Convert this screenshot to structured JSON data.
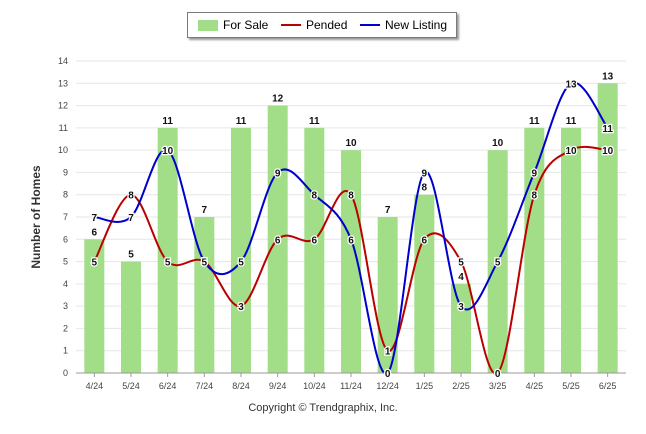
{
  "chart_data": {
    "type": "bar",
    "categories": [
      "4/24",
      "5/24",
      "6/24",
      "7/24",
      "8/24",
      "9/24",
      "10/24",
      "11/24",
      "12/24",
      "1/25",
      "2/25",
      "3/25",
      "4/25",
      "5/25",
      "6/25"
    ],
    "series": [
      {
        "name": "For Sale",
        "type": "bar",
        "color": "#a2dd88",
        "values": [
          6,
          5,
          11,
          7,
          11,
          12,
          11,
          10,
          7,
          8,
          4,
          10,
          11,
          11,
          13
        ]
      },
      {
        "name": "Pended",
        "type": "line",
        "color": "#bb0000",
        "values": [
          5,
          8,
          5,
          5,
          3,
          6,
          6,
          8,
          1,
          6,
          5,
          0,
          8,
          10,
          10
        ]
      },
      {
        "name": "New Listing",
        "type": "line",
        "color": "#0000cc",
        "values": [
          7,
          7,
          10,
          5,
          5,
          9,
          8,
          6,
          0,
          9,
          3,
          5,
          9,
          13,
          11
        ]
      }
    ],
    "ylabel": "Number of Homes",
    "ylim": [
      0,
      14
    ],
    "yticks": [
      0,
      1,
      2,
      3,
      4,
      5,
      6,
      7,
      8,
      9,
      10,
      11,
      12,
      13,
      14
    ],
    "grid": true,
    "legend_position": "top"
  },
  "legend": [
    {
      "label": "For Sale",
      "color": "#a2dd88",
      "kind": "bar"
    },
    {
      "label": "Pended",
      "color": "#bb0000",
      "kind": "line"
    },
    {
      "label": "New Listing",
      "color": "#0000cc",
      "kind": "line"
    }
  ],
  "copyright": "Copyright © Trendgraphix, Inc."
}
